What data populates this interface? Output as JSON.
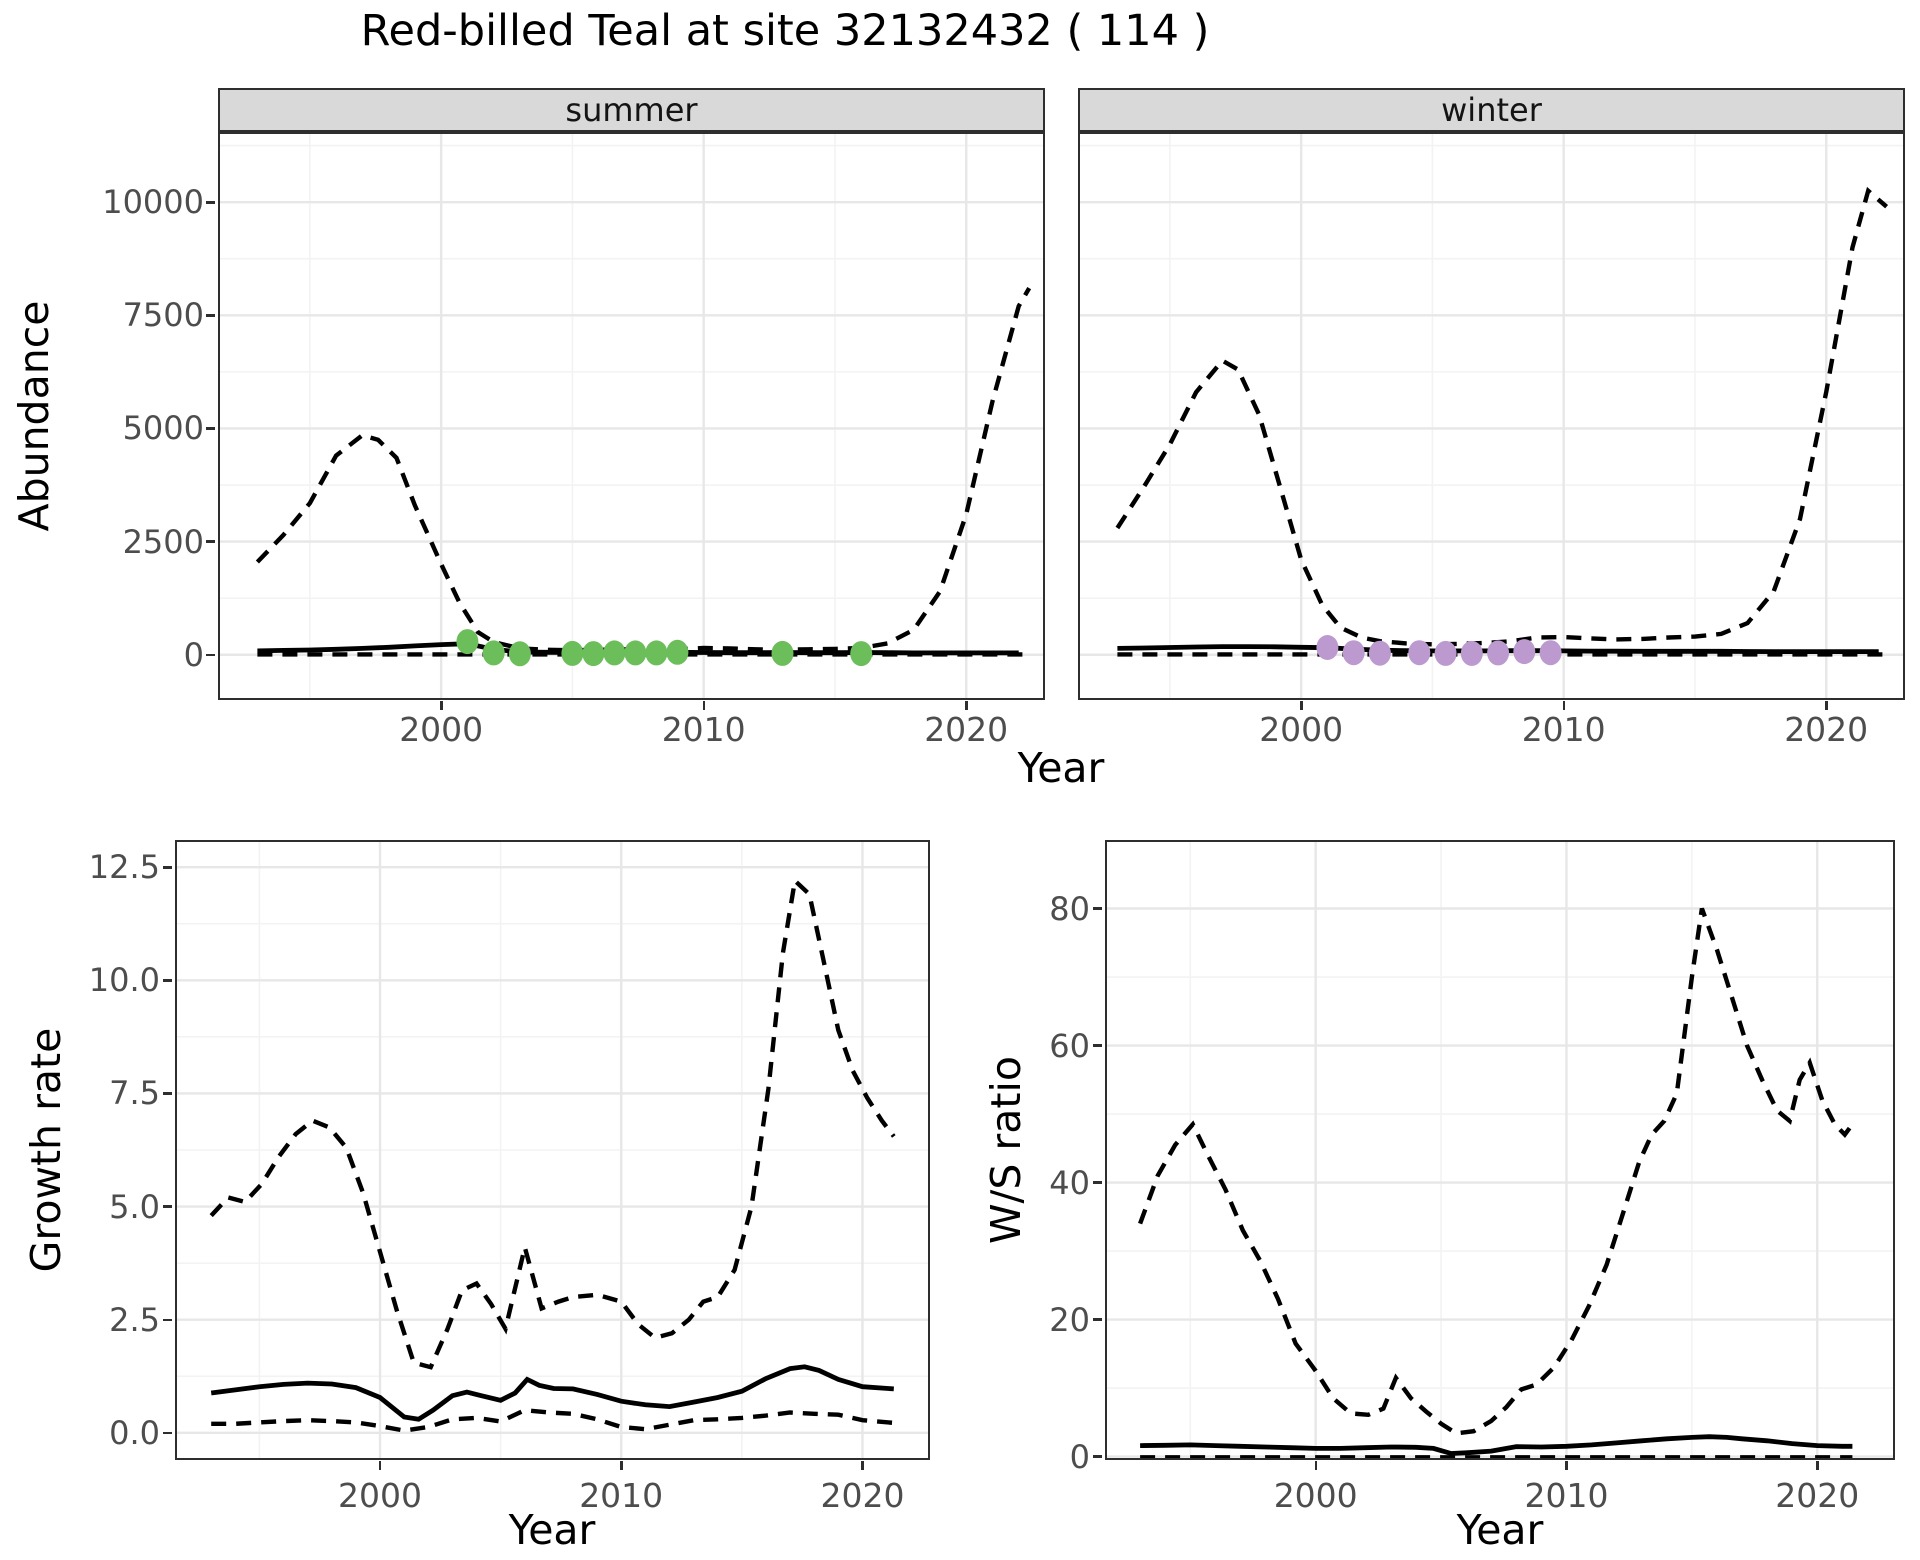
{
  "title": "Red-billed Teal at site 32132432 ( 114 )",
  "axes": {
    "top_y_title": "Abundance",
    "top_x_title": "Year",
    "growth_y_title": "Growth rate",
    "growth_x_title": "Year",
    "ws_y_title": "W/S ratio",
    "ws_x_title": "Year"
  },
  "colors": {
    "line": "#000000",
    "summer_points": "#6cbe5b",
    "winter_points": "#bc99cf",
    "strip_bg": "#d9d9d9",
    "panel_border": "#2e2e2e",
    "grid_major": "#e7e7e7",
    "grid_minor": "#f3f3f3",
    "tick_text": "#4d4d4d"
  },
  "chart_data": [
    {
      "id": "summer",
      "type": "line",
      "facet_label": "summer",
      "xlabel": "Year",
      "ylabel": "Abundance",
      "xlim": [
        1991.5,
        2023.0
      ],
      "ylim": [
        -1000,
        11550
      ],
      "x_ticks": {
        "values": [
          2000,
          2010,
          2020
        ],
        "labels": [
          "2000",
          "2010",
          "2020"
        ]
      },
      "y_ticks": {
        "values": [
          0,
          2500,
          5000,
          7500,
          10000
        ],
        "labels": [
          "0",
          "2500",
          "5000",
          "7500",
          "10000"
        ]
      },
      "x_minor": [
        1995,
        2005,
        2015
      ],
      "y_minor": [
        1250,
        3750,
        6250,
        8750,
        11250
      ],
      "series": [
        {
          "name": "lower-ci",
          "style": "dashed",
          "x": [
            1993,
            2022.4
          ],
          "y": [
            8,
            8
          ]
        },
        {
          "name": "upper-ci",
          "style": "dashed",
          "x": [
            1993,
            1994,
            1995,
            1996,
            1997,
            1997.6,
            1998.3,
            1999,
            2000,
            2000.7,
            2001.4,
            2002,
            2003,
            2004,
            2005,
            2006,
            2007,
            2008,
            2009,
            2010,
            2011,
            2012,
            2013,
            2014,
            2015,
            2016,
            2017,
            2018,
            2019,
            2020,
            2021,
            2022,
            2022.4
          ],
          "y": [
            2050,
            2650,
            3350,
            4400,
            4850,
            4750,
            4350,
            3300,
            2000,
            1150,
            500,
            280,
            140,
            110,
            100,
            110,
            120,
            130,
            120,
            150,
            140,
            120,
            110,
            120,
            130,
            150,
            250,
            550,
            1400,
            3100,
            5600,
            7700,
            8100
          ]
        },
        {
          "name": "estimate",
          "style": "solid",
          "x": [
            1993,
            1994,
            1995,
            1996,
            1997,
            1998,
            1999,
            2000,
            2001,
            2002,
            2003,
            2004,
            2005,
            2006,
            2007,
            2008,
            2009,
            2010,
            2011,
            2012,
            2013,
            2014,
            2015,
            2016,
            2017,
            2018,
            2019,
            2020,
            2021,
            2022
          ],
          "y": [
            85,
            95,
            105,
            120,
            140,
            165,
            195,
            225,
            245,
            120,
            60,
            55,
            50,
            55,
            60,
            60,
            55,
            50,
            45,
            45,
            50,
            45,
            45,
            50,
            45,
            40,
            40,
            40,
            40,
            40
          ]
        }
      ],
      "points": {
        "name": "observed-count-point",
        "color_key": "summer_points",
        "x": [
          2001,
          2002,
          2003,
          2005,
          2005.8,
          2006.6,
          2007.4,
          2008.2,
          2009,
          2013,
          2016
        ],
        "y": [
          290,
          40,
          20,
          30,
          25,
          40,
          40,
          40,
          55,
          30,
          25
        ]
      }
    },
    {
      "id": "winter",
      "type": "line",
      "facet_label": "winter",
      "xlabel": "Year",
      "ylabel": "Abundance",
      "xlim": [
        1991.5,
        2023.0
      ],
      "ylim": [
        -1000,
        11550
      ],
      "x_ticks": {
        "values": [
          2000,
          2010,
          2020
        ],
        "labels": [
          "2000",
          "2010",
          "2020"
        ]
      },
      "y_ticks": {
        "values": [
          0,
          2500,
          5000,
          7500,
          10000
        ],
        "labels": [
          "0",
          "2500",
          "5000",
          "7500",
          "10000"
        ]
      },
      "x_minor": [
        1995,
        2005,
        2015
      ],
      "y_minor": [
        1250,
        3750,
        6250,
        8750,
        11250
      ],
      "series": [
        {
          "name": "lower-ci",
          "style": "dashed",
          "x": [
            1993,
            2022.3
          ],
          "y": [
            8,
            8
          ]
        },
        {
          "name": "upper-ci",
          "style": "dashed",
          "x": [
            1993,
            1994,
            1995,
            1996,
            1997,
            1997.6,
            1998.4,
            1999.2,
            2000,
            2000.8,
            2001.5,
            2002.3,
            2003,
            2004,
            2005,
            2006,
            2007,
            2008,
            2009,
            2010,
            2011,
            2012,
            2013,
            2014,
            2015,
            2016,
            2017,
            2018,
            2019,
            2020,
            2021,
            2021.6,
            2022.3
          ],
          "y": [
            2800,
            3700,
            4650,
            5800,
            6500,
            6300,
            5300,
            3700,
            2100,
            1100,
            600,
            380,
            300,
            250,
            230,
            240,
            260,
            300,
            380,
            390,
            360,
            340,
            350,
            380,
            400,
            460,
            700,
            1400,
            3000,
            5800,
            9000,
            10250,
            9900
          ]
        },
        {
          "name": "estimate",
          "style": "solid",
          "x": [
            1993,
            1994,
            1995,
            1996,
            1997,
            1998,
            1999,
            2000,
            2001,
            2002,
            2003,
            2004,
            2005,
            2006,
            2007,
            2008,
            2009,
            2010,
            2011,
            2012,
            2013,
            2014,
            2015,
            2016,
            2017,
            2018,
            2019,
            2020,
            2021,
            2022
          ],
          "y": [
            140,
            150,
            160,
            170,
            180,
            180,
            175,
            165,
            155,
            125,
            100,
            90,
            85,
            85,
            85,
            90,
            90,
            85,
            80,
            78,
            75,
            75,
            75,
            75,
            72,
            70,
            70,
            70,
            70,
            70
          ]
        }
      ],
      "points": {
        "name": "observed-count-point",
        "color_key": "winter_points",
        "x": [
          2001,
          2002,
          2003,
          2004.5,
          2005.5,
          2006.5,
          2007.5,
          2008.5,
          2009.5
        ],
        "y": [
          160,
          45,
          35,
          45,
          30,
          30,
          40,
          70,
          45
        ]
      }
    },
    {
      "id": "growth",
      "type": "line",
      "facet_label": null,
      "xlabel": "Year",
      "ylabel": "Growth rate",
      "xlim": [
        1991.5,
        2022.8
      ],
      "ylim": [
        -0.6,
        13.1
      ],
      "x_ticks": {
        "values": [
          2000,
          2010,
          2020
        ],
        "labels": [
          "2000",
          "2010",
          "2020"
        ]
      },
      "y_ticks": {
        "values": [
          0,
          2.5,
          5,
          7.5,
          10,
          12.5
        ],
        "labels": [
          "0.0",
          "2.5",
          "5.0",
          "7.5",
          "10.0",
          "12.5"
        ]
      },
      "x_minor": [
        1995,
        2005,
        2015
      ],
      "y_minor": [
        1.25,
        3.75,
        6.25,
        8.75,
        11.25
      ],
      "series": [
        {
          "name": "lower-ci",
          "style": "dashed",
          "x": [
            1993,
            1994,
            1995,
            1996,
            1997,
            1998,
            1999,
            2000,
            2001,
            2002,
            2003,
            2004,
            2005,
            2006,
            2007,
            2008,
            2009,
            2010,
            2011,
            2012,
            2013,
            2014,
            2015,
            2016,
            2017,
            2018,
            2019,
            2020,
            2021.3
          ],
          "y": [
            0.2,
            0.2,
            0.23,
            0.26,
            0.28,
            0.26,
            0.23,
            0.15,
            0.05,
            0.13,
            0.3,
            0.33,
            0.25,
            0.5,
            0.45,
            0.42,
            0.3,
            0.13,
            0.08,
            0.18,
            0.28,
            0.3,
            0.33,
            0.38,
            0.45,
            0.42,
            0.4,
            0.28,
            0.22
          ]
        },
        {
          "name": "upper-ci",
          "style": "dashed",
          "x": [
            1993,
            1993.7,
            1994.4,
            1995.1,
            1995.8,
            1996.5,
            1997.2,
            1997.9,
            1998.6,
            1999.3,
            2000,
            2000.7,
            2001.4,
            2002.1,
            2002.8,
            2003.4,
            2004,
            2004.6,
            2005.2,
            2006,
            2006.7,
            2007.4,
            2008,
            2009,
            2010,
            2010.7,
            2011.4,
            2012.1,
            2012.8,
            2013.4,
            2014,
            2014.7,
            2015.4,
            2016.1,
            2016.7,
            2017.2,
            2017.8,
            2018.4,
            2019,
            2019.6,
            2020.2,
            2020.8,
            2021.3
          ],
          "y": [
            4.8,
            5.2,
            5.1,
            5.5,
            6.1,
            6.6,
            6.9,
            6.75,
            6.3,
            5.3,
            4.0,
            2.7,
            1.55,
            1.45,
            2.3,
            3.15,
            3.3,
            2.85,
            2.3,
            4.1,
            2.75,
            2.9,
            3.0,
            3.05,
            2.9,
            2.4,
            2.1,
            2.2,
            2.5,
            2.9,
            3.0,
            3.6,
            5.0,
            7.6,
            10.6,
            12.2,
            11.9,
            10.4,
            8.9,
            8.0,
            7.4,
            6.9,
            6.55
          ]
        },
        {
          "name": "estimate",
          "style": "solid",
          "x": [
            1993,
            1994,
            1995,
            1996,
            1997,
            1998,
            1999,
            2000,
            2001,
            2001.6,
            2002.2,
            2003,
            2003.6,
            2004.2,
            2005,
            2005.6,
            2006.1,
            2006.6,
            2007.2,
            2008,
            2009,
            2010,
            2011,
            2012,
            2013,
            2014,
            2015,
            2016,
            2017,
            2017.6,
            2018.2,
            2019,
            2020,
            2021.3
          ],
          "y": [
            0.88,
            0.95,
            1.02,
            1.07,
            1.1,
            1.08,
            1.0,
            0.78,
            0.35,
            0.3,
            0.5,
            0.82,
            0.9,
            0.82,
            0.72,
            0.88,
            1.18,
            1.05,
            0.98,
            0.97,
            0.85,
            0.7,
            0.62,
            0.58,
            0.68,
            0.78,
            0.92,
            1.2,
            1.42,
            1.46,
            1.38,
            1.18,
            1.02,
            0.97
          ]
        }
      ],
      "points": null
    },
    {
      "id": "ws",
      "type": "line",
      "facet_label": null,
      "xlabel": "Year",
      "ylabel": "W/S ratio",
      "xlim": [
        1991.6,
        2023.1
      ],
      "ylim": [
        -0.5,
        90
      ],
      "x_ticks": {
        "values": [
          2000,
          2010,
          2020
        ],
        "labels": [
          "2000",
          "2010",
          "2020"
        ]
      },
      "y_ticks": {
        "values": [
          0,
          20,
          40,
          60,
          80
        ],
        "labels": [
          "0",
          "20",
          "40",
          "60",
          "80"
        ]
      },
      "x_minor": [
        1995,
        2005,
        2015
      ],
      "y_minor": [
        10,
        30,
        50,
        70
      ],
      "series": [
        {
          "name": "lower-ci",
          "style": "dashed",
          "x": [
            1993,
            2021.4
          ],
          "y": [
            -0.1,
            -0.1
          ]
        },
        {
          "name": "upper-ci",
          "style": "dashed",
          "x": [
            1993,
            1993.7,
            1994.4,
            1995.1,
            1995.7,
            1996.4,
            1997.1,
            1997.8,
            1998.5,
            1999.2,
            2000,
            2000.7,
            2001.4,
            2002.1,
            2002.7,
            2003.2,
            2003.8,
            2004.4,
            2005,
            2005.6,
            2006.3,
            2007,
            2007.6,
            2008.2,
            2008.8,
            2009.5,
            2010.2,
            2010.9,
            2011.6,
            2012.3,
            2012.9,
            2013.4,
            2013.9,
            2014.4,
            2015,
            2015.4,
            2016,
            2016.6,
            2017.2,
            2017.8,
            2018.4,
            2018.9,
            2019.3,
            2019.7,
            2020.2,
            2020.7,
            2021.1,
            2021.4
          ],
          "y": [
            34,
            41,
            45.5,
            48.5,
            44,
            39,
            33,
            28.5,
            23,
            16.5,
            12.5,
            8.5,
            6.3,
            6.1,
            7.0,
            11.5,
            8.5,
            6.6,
            4.8,
            3.4,
            3.7,
            5.2,
            7.2,
            9.8,
            10.5,
            13,
            17,
            22,
            28,
            36,
            43,
            47,
            49,
            53,
            70,
            80,
            74,
            67,
            60,
            55,
            50.5,
            49,
            55,
            57.5,
            52,
            48.5,
            47,
            48.5
          ]
        },
        {
          "name": "estimate",
          "style": "solid",
          "x": [
            1993,
            1994,
            1995,
            1996,
            1997,
            1998,
            1999,
            2000,
            2001,
            2002,
            2003,
            2004,
            2004.7,
            2005.4,
            2006,
            2007,
            2008,
            2009,
            2010,
            2011,
            2012,
            2013,
            2014,
            2015,
            2015.7,
            2016.4,
            2017,
            2018,
            2019,
            2020,
            2021,
            2021.4
          ],
          "y": [
            1.6,
            1.65,
            1.7,
            1.6,
            1.5,
            1.4,
            1.3,
            1.2,
            1.2,
            1.3,
            1.4,
            1.35,
            1.2,
            0.45,
            0.55,
            0.8,
            1.45,
            1.4,
            1.5,
            1.7,
            2.0,
            2.3,
            2.6,
            2.8,
            2.9,
            2.8,
            2.6,
            2.3,
            1.9,
            1.6,
            1.5,
            1.5
          ]
        }
      ],
      "points": null
    }
  ]
}
